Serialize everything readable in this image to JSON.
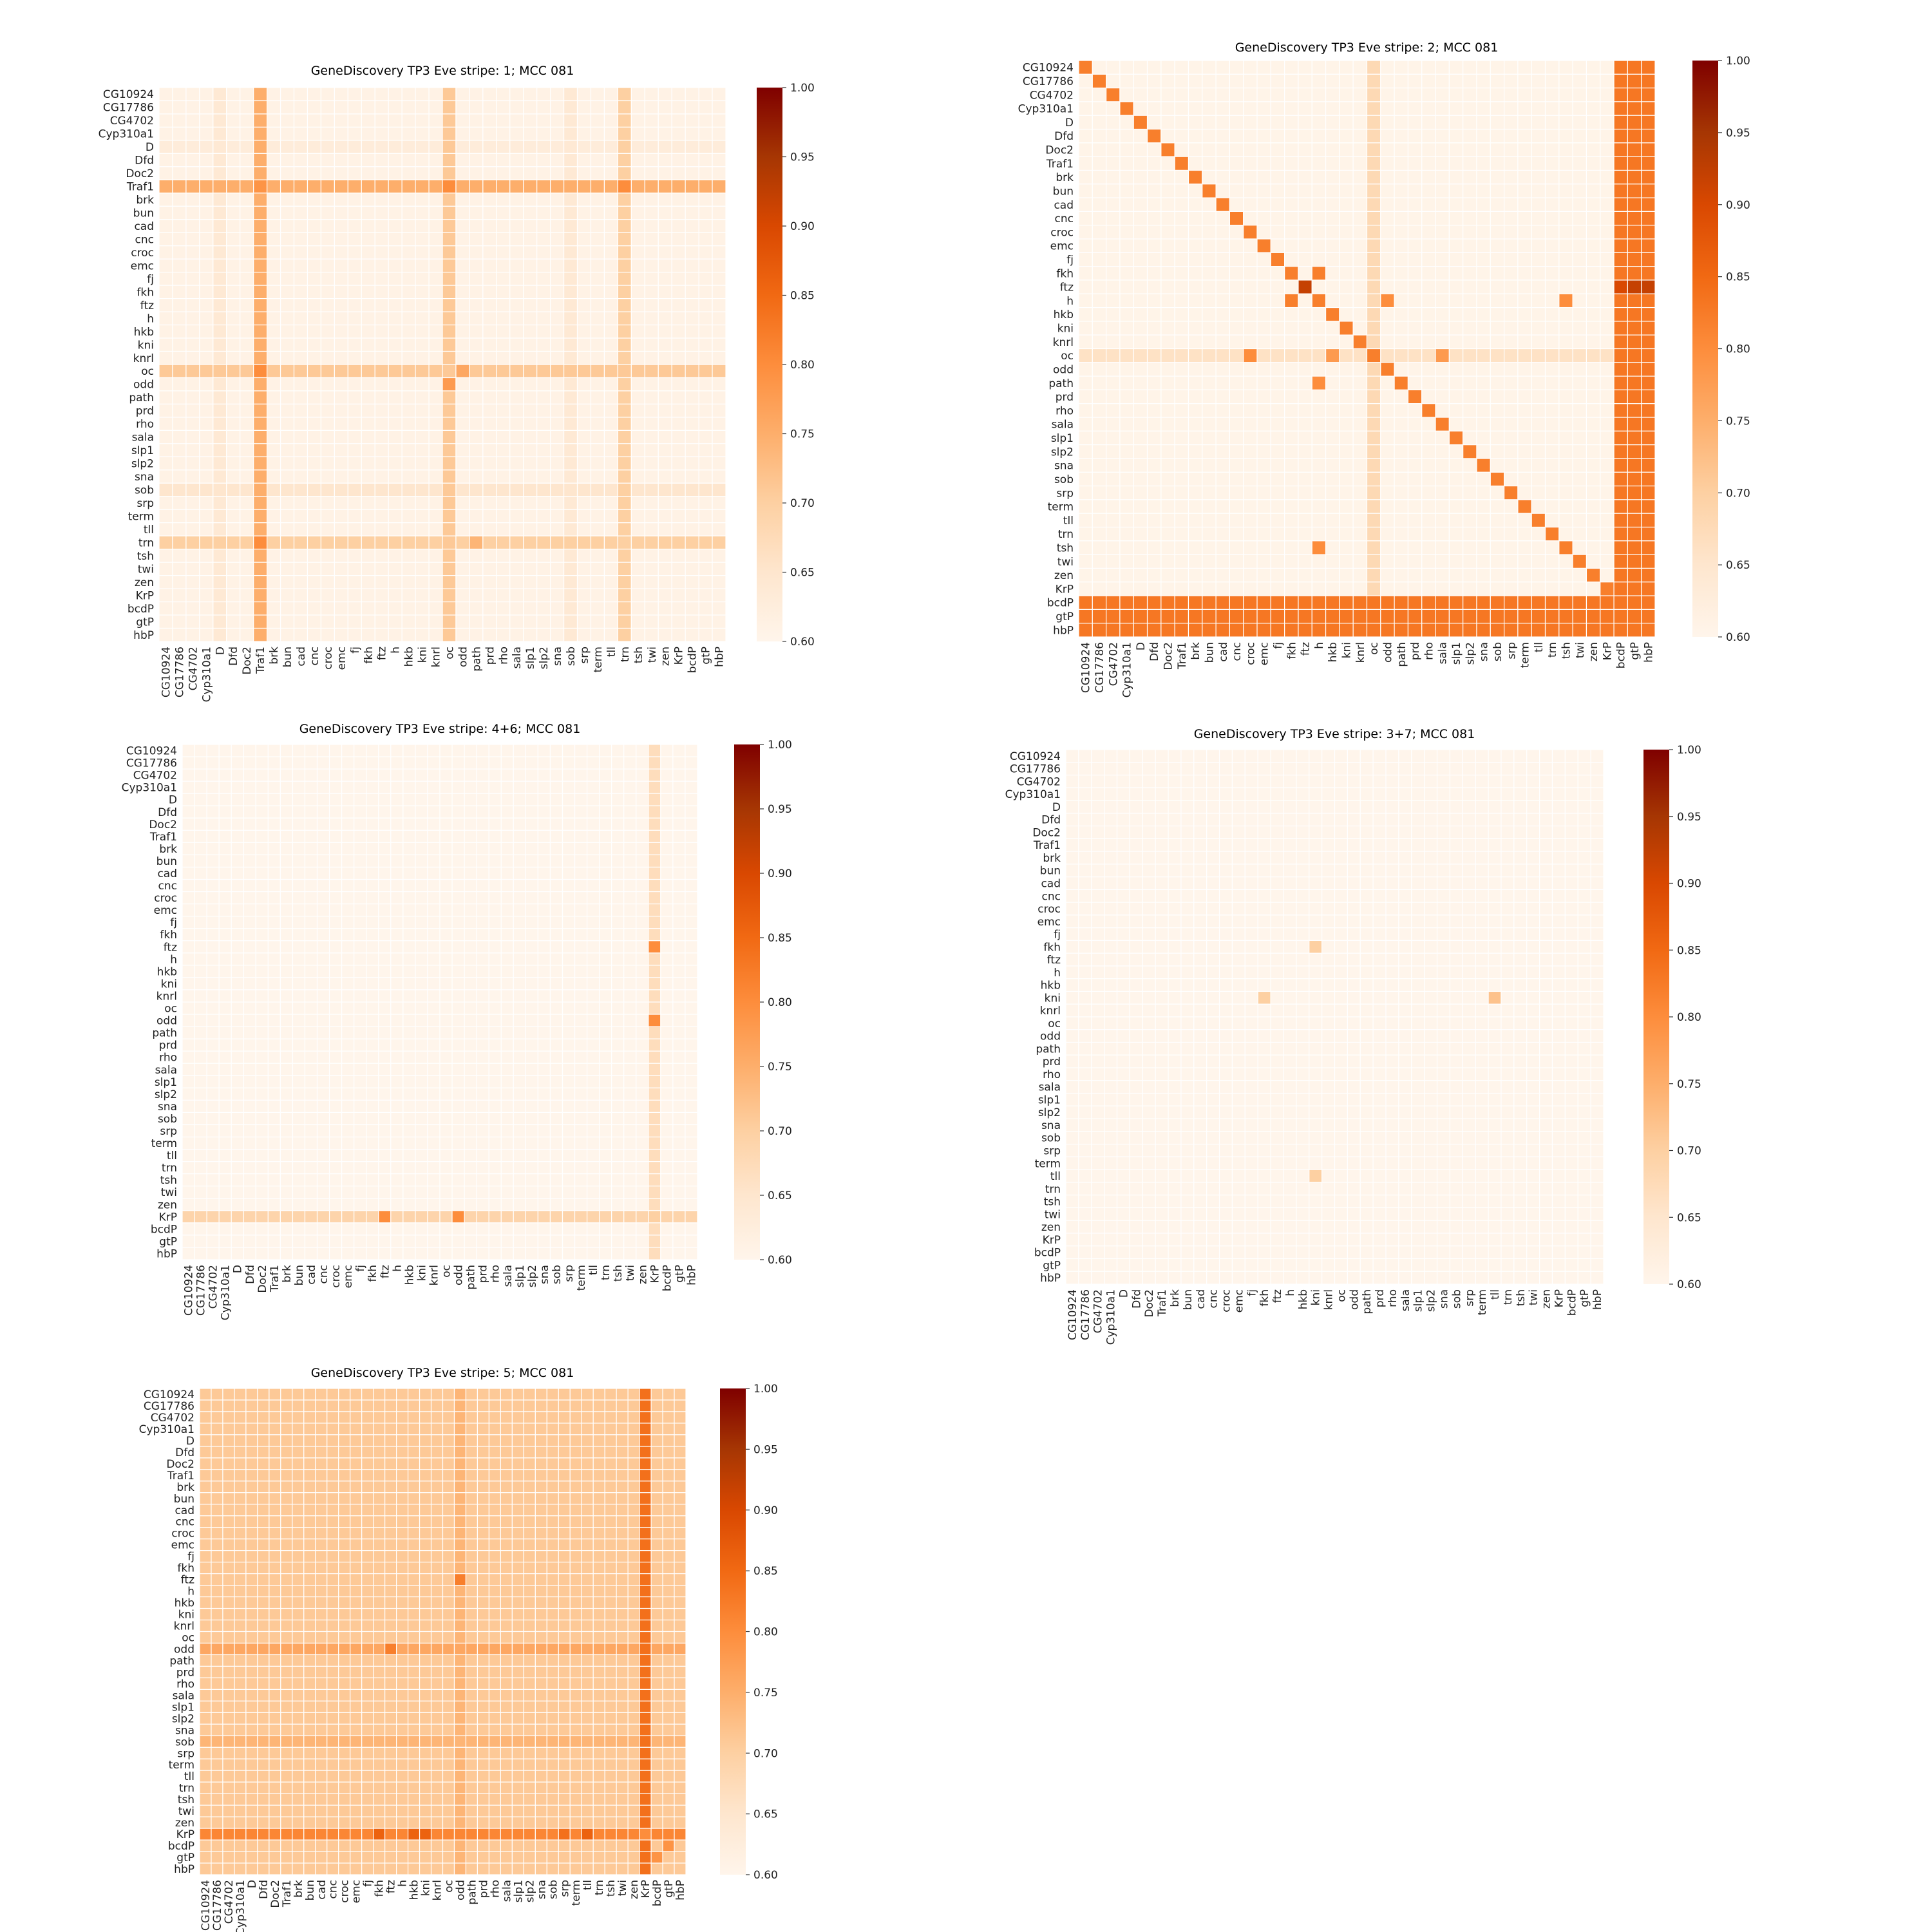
{
  "genes": [
    "CG10924",
    "CG17786",
    "CG4702",
    "Cyp310a1",
    "D",
    "Dfd",
    "Doc2",
    "Traf1",
    "brk",
    "bun",
    "cad",
    "cnc",
    "croc",
    "emc",
    "fj",
    "fkh",
    "ftz",
    "h",
    "hkb",
    "kni",
    "knrl",
    "oc",
    "odd",
    "path",
    "prd",
    "rho",
    "sala",
    "slp1",
    "slp2",
    "sna",
    "sob",
    "srp",
    "term",
    "tll",
    "trn",
    "tsh",
    "twi",
    "zen",
    "KrP",
    "bcdP",
    "gtP",
    "hbP"
  ],
  "colors": {
    "scale": [
      "#fff5eb",
      "#fee6ce",
      "#fdd0a2",
      "#fdae6b",
      "#fd8d3c",
      "#f16913",
      "#d94801",
      "#a63603",
      "#7f0000"
    ],
    "grid_line": "#ffffff"
  },
  "chart_data": [
    {
      "type": "heatmap",
      "title": "GeneDiscovery TP3 Eve stripe: 1; MCC 081",
      "value_range": [
        0.6,
        1.0
      ],
      "colorbar_ticks": [
        "1.00",
        "0.95",
        "0.90",
        "0.85",
        "0.80",
        "0.75",
        "0.70",
        "0.65",
        "0.60"
      ],
      "base": 0.61,
      "row_bands": [
        {
          "gene": "Traf1",
          "value": 0.75
        },
        {
          "gene": "oc",
          "value": 0.71
        },
        {
          "gene": "trn",
          "value": 0.7
        },
        {
          "gene": "sob",
          "value": 0.65
        },
        {
          "gene": "D",
          "value": 0.63
        }
      ],
      "col_bands": [
        {
          "gene": "Traf1",
          "value": 0.75
        },
        {
          "gene": "oc",
          "value": 0.71
        },
        {
          "gene": "trn",
          "value": 0.7
        },
        {
          "gene": "D",
          "value": 0.64
        },
        {
          "gene": "sob",
          "value": 0.64
        }
      ],
      "cells": [
        {
          "r": "Traf1",
          "c": "Traf1",
          "value": 0.79
        },
        {
          "r": "odd",
          "c": "oc",
          "value": 0.78
        },
        {
          "r": "Traf1",
          "c": "oc",
          "value": 0.8
        },
        {
          "r": "oc",
          "c": "Traf1",
          "value": 0.8
        },
        {
          "r": "trn",
          "c": "Traf1",
          "value": 0.8
        },
        {
          "r": "Traf1",
          "c": "trn",
          "value": 0.8
        },
        {
          "r": "oc",
          "c": "odd",
          "value": 0.76
        },
        {
          "r": "trn",
          "c": "path",
          "value": 0.74
        }
      ]
    },
    {
      "type": "heatmap",
      "title": "GeneDiscovery TP3 Eve stripe: 2; MCC 081",
      "value_range": [
        0.6,
        1.0
      ],
      "colorbar_ticks": [
        "1.00",
        "0.95",
        "0.90",
        "0.85",
        "0.80",
        "0.75",
        "0.70",
        "0.65",
        "0.60"
      ],
      "base": 0.605,
      "diagonal": 0.82,
      "row_bands": [
        {
          "gene": "oc",
          "value": 0.66
        },
        {
          "gene": "bcdP",
          "value": 0.83
        },
        {
          "gene": "gtP",
          "value": 0.83
        },
        {
          "gene": "hbP",
          "value": 0.83
        }
      ],
      "col_bands": [
        {
          "gene": "oc",
          "value": 0.68
        },
        {
          "gene": "bcdP",
          "value": 0.83
        },
        {
          "gene": "gtP",
          "value": 0.83
        },
        {
          "gene": "hbP",
          "value": 0.83
        }
      ],
      "cells": [
        {
          "r": "ftz",
          "c": "ftz",
          "value": 0.92
        },
        {
          "r": "fkh",
          "c": "h",
          "value": 0.82
        },
        {
          "r": "h",
          "c": "fkh",
          "value": 0.82
        },
        {
          "r": "h",
          "c": "odd",
          "value": 0.8
        },
        {
          "r": "h",
          "c": "tsh",
          "value": 0.8
        },
        {
          "r": "path",
          "c": "h",
          "value": 0.8
        },
        {
          "r": "tsh",
          "c": "h",
          "value": 0.8
        },
        {
          "r": "oc",
          "c": "croc",
          "value": 0.8
        },
        {
          "r": "oc",
          "c": "sala",
          "value": 0.78
        },
        {
          "r": "oc",
          "c": "hkb",
          "value": 0.78
        },
        {
          "r": "ftz",
          "c": "bcdP",
          "value": 0.9
        },
        {
          "r": "ftz",
          "c": "gtP",
          "value": 0.92
        },
        {
          "r": "ftz",
          "c": "hbP",
          "value": 0.92
        }
      ]
    },
    {
      "type": "heatmap",
      "title": "GeneDiscovery TP3 Eve stripe: 4+6; MCC 081",
      "value_range": [
        0.6,
        1.0
      ],
      "colorbar_ticks": [
        "1.00",
        "0.95",
        "0.90",
        "0.85",
        "0.80",
        "0.75",
        "0.70",
        "0.65",
        "0.60"
      ],
      "base": 0.6,
      "row_bands": [
        {
          "gene": "KrP",
          "value": 0.69
        }
      ],
      "col_bands": [
        {
          "gene": "KrP",
          "value": 0.67
        }
      ],
      "cells": [
        {
          "r": "ftz",
          "c": "KrP",
          "value": 0.8
        },
        {
          "r": "odd",
          "c": "KrP",
          "value": 0.8
        },
        {
          "r": "KrP",
          "c": "ftz",
          "value": 0.8
        },
        {
          "r": "KrP",
          "c": "odd",
          "value": 0.8
        },
        {
          "r": "KrP",
          "c": "KrP",
          "value": 0.7
        }
      ]
    },
    {
      "type": "heatmap",
      "title": "GeneDiscovery TP3 Eve stripe: 3+7; MCC 081",
      "value_range": [
        0.6,
        1.0
      ],
      "colorbar_ticks": [
        "1.00",
        "0.95",
        "0.90",
        "0.85",
        "0.80",
        "0.75",
        "0.70",
        "0.65",
        "0.60"
      ],
      "base": 0.6,
      "row_bands": [],
      "col_bands": [],
      "cells": [
        {
          "r": "fkh",
          "c": "kni",
          "value": 0.7
        },
        {
          "r": "kni",
          "c": "fkh",
          "value": 0.7
        },
        {
          "r": "kni",
          "c": "tll",
          "value": 0.72
        },
        {
          "r": "tll",
          "c": "kni",
          "value": 0.7
        }
      ]
    },
    {
      "type": "heatmap",
      "title": "GeneDiscovery TP3 Eve stripe: 5; MCC 081",
      "value_range": [
        0.6,
        1.0
      ],
      "colorbar_ticks": [
        "1.00",
        "0.95",
        "0.90",
        "0.85",
        "0.80",
        "0.75",
        "0.70",
        "0.65",
        "0.60"
      ],
      "base": 0.71,
      "row_bands": [
        {
          "gene": "KrP",
          "value": 0.81
        },
        {
          "gene": "odd",
          "value": 0.76
        },
        {
          "gene": "sob",
          "value": 0.74
        }
      ],
      "col_bands": [
        {
          "gene": "KrP",
          "value": 0.84
        },
        {
          "gene": "odd",
          "value": 0.74
        }
      ],
      "cells": [
        {
          "r": "KrP",
          "c": "fkh",
          "value": 0.86
        },
        {
          "r": "KrP",
          "c": "hkb",
          "value": 0.86
        },
        {
          "r": "KrP",
          "c": "kni",
          "value": 0.86
        },
        {
          "r": "KrP",
          "c": "tll",
          "value": 0.86
        },
        {
          "r": "KrP",
          "c": "srp",
          "value": 0.84
        },
        {
          "r": "ftz",
          "c": "odd",
          "value": 0.82
        },
        {
          "r": "odd",
          "c": "ftz",
          "value": 0.82
        },
        {
          "r": "KrP",
          "c": "KrP",
          "value": 0.8
        },
        {
          "r": "bcdP",
          "c": "gtP",
          "value": 0.79
        },
        {
          "r": "gtP",
          "c": "bcdP",
          "value": 0.79
        }
      ]
    }
  ]
}
